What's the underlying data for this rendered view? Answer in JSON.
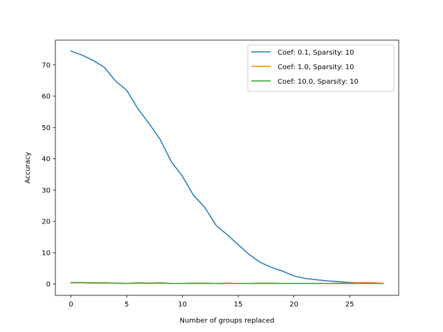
{
  "chart_data": {
    "type": "line",
    "title": "",
    "xlabel": "Number of groups replaced",
    "ylabel": "Accuracy",
    "xlim": [
      -1.4,
      29.4
    ],
    "ylim": [
      -3.6,
      77.9
    ],
    "xticks": [
      0,
      5,
      10,
      15,
      20,
      25
    ],
    "yticks": [
      0,
      10,
      20,
      30,
      40,
      50,
      60,
      70
    ],
    "grid": false,
    "legend_position": "upper right",
    "x": [
      0,
      1,
      2,
      3,
      4,
      5,
      6,
      7,
      8,
      9,
      10,
      11,
      12,
      13,
      14,
      15,
      16,
      17,
      18,
      19,
      20,
      21,
      22,
      23,
      24,
      25,
      26,
      27,
      28
    ],
    "series": [
      {
        "name": "Coef: 0.1, Sparsity: 10",
        "color": "#1f77b4",
        "values": [
          74.4,
          73.1,
          71.4,
          69.2,
          64.8,
          61.9,
          56.0,
          51.3,
          46.2,
          39.1,
          34.4,
          28.3,
          24.5,
          18.8,
          15.8,
          12.6,
          9.4,
          6.9,
          5.3,
          4.1,
          2.6,
          1.8,
          1.4,
          1.0,
          0.8,
          0.5,
          0.4,
          0.3,
          0.2
        ]
      },
      {
        "name": "Coef: 1.0, Sparsity: 10",
        "color": "#ff7f0e",
        "values": [
          0.4,
          0.4,
          0.3,
          0.3,
          0.3,
          0.2,
          0.3,
          0.2,
          0.3,
          0.2,
          0.2,
          0.2,
          0.2,
          0.2,
          0.3,
          0.2,
          0.2,
          0.2,
          0.2,
          0.2,
          0.2,
          0.2,
          0.2,
          0.2,
          0.3,
          0.3,
          0.5,
          0.5,
          0.2
        ]
      },
      {
        "name": "Coef: 10.0, Sparsity: 10",
        "color": "#2ca02c",
        "values": [
          0.5,
          0.5,
          0.4,
          0.4,
          0.3,
          0.2,
          0.4,
          0.3,
          0.4,
          0.2,
          0.2,
          0.3,
          0.3,
          0.2,
          0.2,
          0.2,
          0.2,
          0.3,
          0.3,
          0.2,
          0.2,
          0.2,
          0.2,
          0.2,
          0.2,
          0.2,
          0.2,
          0.2,
          0.2
        ]
      }
    ]
  }
}
